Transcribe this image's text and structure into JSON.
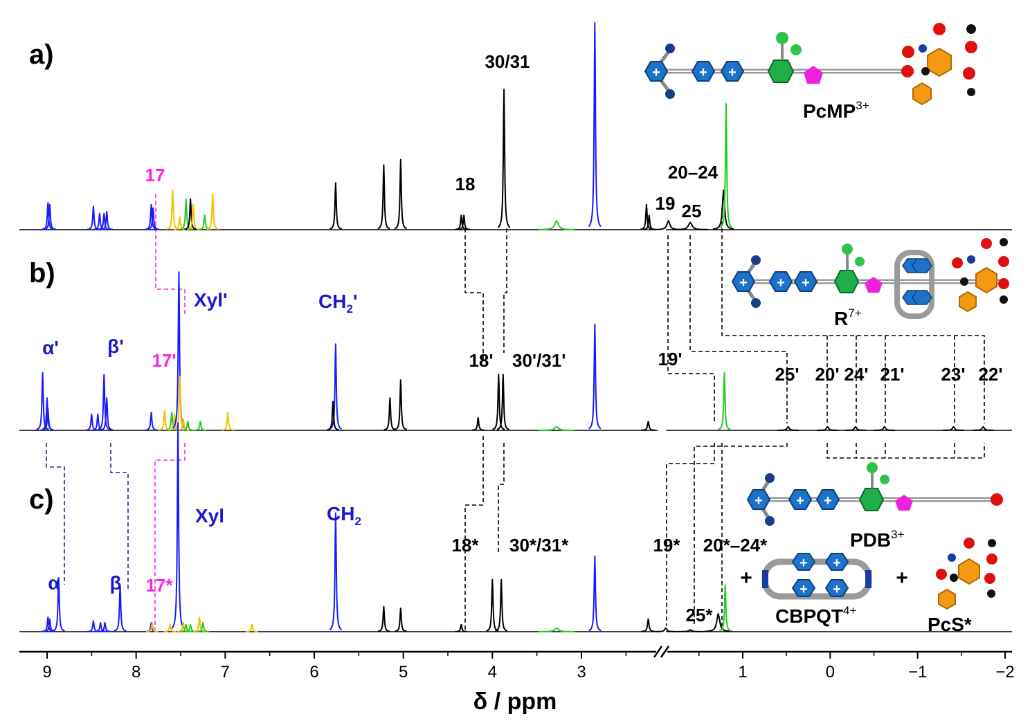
{
  "chart_data": {
    "type": "line",
    "title": "",
    "xlabel": "δ / ppm",
    "x_axis": {
      "reversed": true,
      "segments": [
        {
          "from": 9.4,
          "to": 2.0
        },
        {
          "from": 1.95,
          "to": -2.05
        }
      ],
      "ticks": [
        9,
        8,
        7,
        6,
        5,
        4,
        3,
        1,
        0,
        -1,
        -2
      ],
      "tick_labels": [
        "9",
        "8",
        "7",
        "6",
        "5",
        "4",
        "3",
        "1",
        "0",
        "−1",
        "−2"
      ],
      "break_marker": "//"
    },
    "colors": {
      "black": "#000000",
      "blue": "#1a1aff",
      "green": "#22cc22",
      "yellow": "#f2c000",
      "magenta": "#ff22dd",
      "navy": "#1a2a8a"
    },
    "panels": [
      {
        "id": "a",
        "panel_label": "a)",
        "molecule_label": "PcMP",
        "molecule_charge": "3+",
        "peaks": [
          {
            "x": 8.97,
            "h": 0.14,
            "c": "blue"
          },
          {
            "x": 8.99,
            "h": 0.15,
            "c": "blue"
          },
          {
            "x": 8.48,
            "h": 0.13,
            "c": "blue"
          },
          {
            "x": 8.41,
            "h": 0.09,
            "c": "blue"
          },
          {
            "x": 8.36,
            "h": 0.09,
            "c": "blue"
          },
          {
            "x": 8.33,
            "h": 0.1,
            "c": "blue"
          },
          {
            "x": 7.83,
            "h": 0.14,
            "c": "blue"
          },
          {
            "x": 7.81,
            "h": 0.12,
            "c": "blue"
          },
          {
            "x": 7.59,
            "h": 0.22,
            "c": "yellow"
          },
          {
            "x": 7.51,
            "h": 0.07,
            "c": "yellow"
          },
          {
            "x": 7.44,
            "h": 0.17,
            "c": "green"
          },
          {
            "x": 7.39,
            "h": 0.17,
            "c": "black"
          },
          {
            "x": 7.36,
            "h": 0.14,
            "c": "yellow"
          },
          {
            "x": 7.23,
            "h": 0.08,
            "c": "green"
          },
          {
            "x": 7.14,
            "h": 0.2,
            "c": "yellow"
          },
          {
            "x": 5.76,
            "h": 0.26,
            "c": "black"
          },
          {
            "x": 5.22,
            "h": 0.36,
            "c": "black"
          },
          {
            "x": 5.03,
            "h": 0.39,
            "c": "black"
          },
          {
            "x": 4.35,
            "h": 0.08,
            "c": "black"
          },
          {
            "x": 4.32,
            "h": 0.08,
            "c": "black"
          },
          {
            "x": 3.87,
            "h": 0.78,
            "c": "black"
          },
          {
            "x": 3.28,
            "h": 0.05,
            "c": "green",
            "w": 0.05
          },
          {
            "x": 2.85,
            "h": 1.15,
            "c": "blue"
          },
          {
            "x": 2.27,
            "h": 0.14,
            "c": "black"
          },
          {
            "x": 2.24,
            "h": 0.08,
            "c": "black"
          },
          {
            "x": 1.85,
            "h": 0.05,
            "c": "black",
            "w": 0.04
          },
          {
            "x": 1.6,
            "h": 0.04,
            "c": "black",
            "w": 0.05
          },
          {
            "x": 1.22,
            "h": 0.22,
            "c": "black",
            "w": 0.03
          },
          {
            "x": 1.19,
            "h": 0.7,
            "c": "green"
          }
        ],
        "labels": [
          {
            "text": "30/31",
            "c": "black"
          },
          {
            "text": "18",
            "c": "black"
          },
          {
            "text": "17",
            "c": "magenta"
          },
          {
            "text": "20–24",
            "c": "black"
          },
          {
            "text": "19",
            "c": "black"
          },
          {
            "text": "25",
            "c": "black"
          }
        ]
      },
      {
        "id": "b",
        "panel_label": "b)",
        "molecule_label": "R",
        "molecule_charge": "7+",
        "peaks": [
          {
            "x": 9.05,
            "h": 0.32,
            "c": "blue"
          },
          {
            "x": 9.0,
            "h": 0.18,
            "c": "blue"
          },
          {
            "x": 8.99,
            "h": 0.12,
            "c": "blue"
          },
          {
            "x": 8.5,
            "h": 0.09,
            "c": "blue"
          },
          {
            "x": 8.43,
            "h": 0.09,
            "c": "blue"
          },
          {
            "x": 8.36,
            "h": 0.31,
            "c": "blue"
          },
          {
            "x": 8.33,
            "h": 0.18,
            "c": "blue"
          },
          {
            "x": 7.83,
            "h": 0.1,
            "c": "blue"
          },
          {
            "x": 7.68,
            "h": 0.11,
            "c": "yellow"
          },
          {
            "x": 7.6,
            "h": 0.1,
            "c": "green"
          },
          {
            "x": 7.57,
            "h": 0.09,
            "c": "yellow"
          },
          {
            "x": 7.52,
            "h": 0.88,
            "c": "blue"
          },
          {
            "x": 7.51,
            "h": 0.3,
            "c": "yellow"
          },
          {
            "x": 7.47,
            "h": 0.06,
            "c": "yellow"
          },
          {
            "x": 7.42,
            "h": 0.05,
            "c": "green"
          },
          {
            "x": 7.28,
            "h": 0.05,
            "c": "green"
          },
          {
            "x": 6.97,
            "h": 0.1,
            "c": "yellow"
          },
          {
            "x": 5.76,
            "h": 0.48,
            "c": "blue"
          },
          {
            "x": 5.79,
            "h": 0.16,
            "c": "black"
          },
          {
            "x": 5.15,
            "h": 0.18,
            "c": "black"
          },
          {
            "x": 5.03,
            "h": 0.28,
            "c": "black"
          },
          {
            "x": 4.16,
            "h": 0.07,
            "c": "black"
          },
          {
            "x": 3.93,
            "h": 0.31,
            "c": "black"
          },
          {
            "x": 3.88,
            "h": 0.31,
            "c": "black"
          },
          {
            "x": 3.28,
            "h": 0.02,
            "c": "green",
            "w": 0.05
          },
          {
            "x": 2.85,
            "h": 0.59,
            "c": "blue"
          },
          {
            "x": 2.25,
            "h": 0.05,
            "c": "black",
            "w": 0.02
          },
          {
            "x": 1.21,
            "h": 0.32,
            "c": "green"
          },
          {
            "x": 0.48,
            "h": 0.02,
            "c": "black",
            "w": 0.03
          },
          {
            "x": 0.03,
            "h": 0.02,
            "c": "black",
            "w": 0.03
          },
          {
            "x": -0.29,
            "h": 0.02,
            "c": "black",
            "w": 0.03
          },
          {
            "x": -0.62,
            "h": 0.02,
            "c": "black",
            "w": 0.03
          },
          {
            "x": -1.41,
            "h": 0.02,
            "c": "black",
            "w": 0.03
          },
          {
            "x": -1.75,
            "h": 0.02,
            "c": "black",
            "w": 0.03
          }
        ],
        "labels": [
          {
            "text": "α'",
            "c": "blue"
          },
          {
            "text": "β'",
            "c": "blue"
          },
          {
            "text": "17'",
            "c": "magenta"
          },
          {
            "text": "Xyl'",
            "c": "blue"
          },
          {
            "text": "CH",
            "c": "blue"
          },
          {
            "text": "2",
            "c": "blue"
          },
          {
            "text": "'",
            "c": "blue"
          },
          {
            "text": "18'",
            "c": "black"
          },
          {
            "text": "30'/31'",
            "c": "black"
          },
          {
            "text": "19'",
            "c": "black"
          },
          {
            "text": "25'",
            "c": "black"
          },
          {
            "text": "20'",
            "c": "black"
          },
          {
            "text": "24'",
            "c": "black"
          },
          {
            "text": "21'",
            "c": "black"
          },
          {
            "text": "23'",
            "c": "black"
          },
          {
            "text": "22'",
            "c": "black"
          }
        ]
      },
      {
        "id": "c",
        "panel_label": "c)",
        "molecule_label": "PDB",
        "molecule_charge": "3+",
        "extra_molecules": [
          {
            "label": "CBPQT",
            "charge": "4+"
          },
          {
            "label": "PcS*",
            "charge": ""
          }
        ],
        "plus_signs": [
          "+",
          "+"
        ],
        "peaks": [
          {
            "x": 8.99,
            "h": 0.08,
            "c": "blue"
          },
          {
            "x": 8.97,
            "h": 0.07,
            "c": "blue"
          },
          {
            "x": 8.87,
            "h": 0.3,
            "c": "blue"
          },
          {
            "x": 8.48,
            "h": 0.06,
            "c": "blue"
          },
          {
            "x": 8.4,
            "h": 0.05,
            "c": "blue"
          },
          {
            "x": 8.35,
            "h": 0.05,
            "c": "blue"
          },
          {
            "x": 8.18,
            "h": 0.26,
            "c": "blue"
          },
          {
            "x": 7.83,
            "h": 0.05,
            "c": "blue"
          },
          {
            "x": 7.82,
            "h": 0.05,
            "c": "yellow"
          },
          {
            "x": 7.62,
            "h": 0.04,
            "c": "yellow"
          },
          {
            "x": 7.53,
            "h": 1.16,
            "c": "blue"
          },
          {
            "x": 7.47,
            "h": 0.05,
            "c": "yellow"
          },
          {
            "x": 7.44,
            "h": 0.04,
            "c": "green"
          },
          {
            "x": 7.39,
            "h": 0.04,
            "c": "green"
          },
          {
            "x": 7.29,
            "h": 0.08,
            "c": "yellow"
          },
          {
            "x": 7.25,
            "h": 0.05,
            "c": "green"
          },
          {
            "x": 6.7,
            "h": 0.04,
            "c": "yellow"
          },
          {
            "x": 5.76,
            "h": 0.66,
            "c": "blue"
          },
          {
            "x": 5.22,
            "h": 0.14,
            "c": "black"
          },
          {
            "x": 5.03,
            "h": 0.13,
            "c": "black"
          },
          {
            "x": 4.35,
            "h": 0.04,
            "c": "black"
          },
          {
            "x": 4.0,
            "h": 0.29,
            "c": "black"
          },
          {
            "x": 3.9,
            "h": 0.29,
            "c": "black"
          },
          {
            "x": 3.28,
            "h": 0.02,
            "c": "green",
            "w": 0.05
          },
          {
            "x": 2.85,
            "h": 0.42,
            "c": "blue"
          },
          {
            "x": 2.25,
            "h": 0.07,
            "c": "black",
            "w": 0.02
          },
          {
            "x": 1.88,
            "h": 0.02,
            "c": "black",
            "w": 0.03
          },
          {
            "x": 1.6,
            "h": 0.01,
            "c": "black",
            "w": 0.04
          },
          {
            "x": 1.28,
            "h": 0.1,
            "c": "black",
            "w": 0.04
          },
          {
            "x": 1.2,
            "h": 0.26,
            "c": "green"
          }
        ],
        "labels": [
          {
            "text": "α",
            "c": "blue"
          },
          {
            "text": "β",
            "c": "blue"
          },
          {
            "text": "17*",
            "c": "magenta"
          },
          {
            "text": "Xyl",
            "c": "blue"
          },
          {
            "text": "CH",
            "c": "blue"
          },
          {
            "text": "2",
            "c": "blue"
          },
          {
            "text": "18*",
            "c": "black"
          },
          {
            "text": "30*/31*",
            "c": "black"
          },
          {
            "text": "19*",
            "c": "black"
          },
          {
            "text": "20*–24*",
            "c": "black"
          },
          {
            "text": "25*",
            "c": "black"
          }
        ]
      }
    ]
  }
}
